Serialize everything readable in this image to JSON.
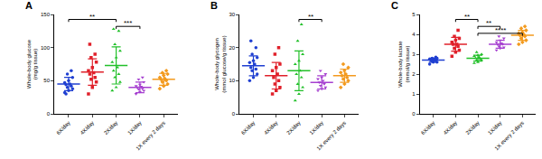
{
  "chart_data": [
    {
      "type": "scatter",
      "title": "A",
      "y_label": "Whole-body glucose (mg/g tissue)",
      "categories": [
        "6X/day",
        "4X/day",
        "2X/day",
        "1X/day",
        "1X every 2 days"
      ],
      "colors": [
        "#1f3fd1",
        "#e0202a",
        "#22c02a",
        "#a640d0",
        "#f39a1e"
      ],
      "points": [
        [
          32,
          35,
          38,
          40,
          42,
          44,
          45,
          47,
          50,
          55,
          60,
          65,
          30
        ],
        [
          30,
          40,
          48,
          52,
          55,
          60,
          62,
          65,
          70,
          78,
          85,
          90,
          105
        ],
        [
          35,
          40,
          48,
          55,
          60,
          65,
          70,
          78,
          85,
          95,
          105,
          125,
          128
        ],
        [
          30,
          33,
          35,
          37,
          38,
          40,
          41,
          42,
          44,
          48,
          52,
          55
        ],
        [
          38,
          42,
          45,
          48,
          50,
          52,
          53,
          55,
          58,
          60,
          62,
          65
        ]
      ],
      "mean": [
        45,
        63,
        73,
        40,
        52
      ],
      "sd": [
        10,
        20,
        28,
        8,
        9
      ],
      "ylim": [
        0,
        150
      ],
      "yticks": [
        0,
        50,
        100,
        150
      ],
      "comparisons": [
        {
          "from": 0,
          "to": 2,
          "label": "**"
        },
        {
          "from": 2,
          "to": 3,
          "label": "***"
        }
      ]
    },
    {
      "type": "scatter",
      "title": "B",
      "y_label": "Whole-body glycogen (mmol glucose/g tissue)",
      "categories": [
        "6X/day",
        "4X/day",
        "2X/day",
        "1X/day",
        "1X every 2 days"
      ],
      "colors": [
        "#1f3fd1",
        "#e0202a",
        "#22c02a",
        "#a640d0",
        "#f39a1e"
      ],
      "points": [
        [
          10,
          11,
          12,
          13,
          13.5,
          14,
          15,
          15.5,
          16,
          17,
          18,
          20,
          22
        ],
        [
          6,
          7,
          8,
          9,
          10,
          11,
          12,
          13,
          14,
          15,
          18,
          20
        ],
        [
          4,
          6,
          8,
          9,
          11,
          12,
          13,
          15,
          16,
          18,
          22,
          27
        ],
        [
          7,
          7.5,
          8,
          8.5,
          9,
          9.5,
          10,
          10.5,
          11,
          12,
          13
        ],
        [
          8,
          9,
          10,
          10.5,
          11,
          11.5,
          12,
          12.5,
          13,
          14,
          15
        ]
      ],
      "mean": [
        14.5,
        11.5,
        13,
        9.5,
        11.5
      ],
      "sd": [
        3,
        4,
        6,
        2,
        2
      ],
      "ylim": [
        0,
        30
      ],
      "yticks": [
        0,
        10,
        20,
        30
      ],
      "comparisons": [
        {
          "from": 2,
          "to": 3,
          "label": "**"
        }
      ]
    },
    {
      "type": "scatter",
      "title": "C",
      "y_label": "Whole-body lactate (mmol/g tissue)",
      "categories": [
        "6X/day",
        "4X/day",
        "2X/day",
        "1X/day",
        "1X every 2 days"
      ],
      "colors": [
        "#1f3fd1",
        "#e0202a",
        "#22c02a",
        "#a640d0",
        "#f39a1e"
      ],
      "points": [
        [
          2.5,
          2.6,
          2.6,
          2.65,
          2.7,
          2.7,
          2.7,
          2.75,
          2.75,
          2.8,
          2.8,
          2.85
        ],
        [
          2.9,
          3.1,
          3.2,
          3.3,
          3.4,
          3.5,
          3.5,
          3.6,
          3.7,
          3.8,
          3.9,
          4.2
        ],
        [
          2.55,
          2.6,
          2.7,
          2.7,
          2.75,
          2.8,
          2.85,
          2.9,
          2.95,
          3.0,
          3.1
        ],
        [
          3.2,
          3.3,
          3.35,
          3.4,
          3.5,
          3.5,
          3.55,
          3.6,
          3.7,
          3.8,
          3.9
        ],
        [
          3.5,
          3.6,
          3.7,
          3.8,
          3.9,
          3.95,
          4.0,
          4.05,
          4.1,
          4.2,
          4.3,
          4.4
        ]
      ],
      "mean": [
        2.7,
        3.5,
        2.8,
        3.5,
        3.95
      ],
      "sd": [
        0.1,
        0.35,
        0.15,
        0.2,
        0.25
      ],
      "ylim": [
        0,
        5
      ],
      "yticks": [
        0,
        1,
        2,
        3,
        4,
        5
      ],
      "comparisons": [
        {
          "from": 1,
          "to": 2,
          "label": "**"
        },
        {
          "from": 2,
          "to": 3,
          "label": "**"
        },
        {
          "from": 2,
          "to": 4,
          "label": "****"
        }
      ]
    }
  ]
}
